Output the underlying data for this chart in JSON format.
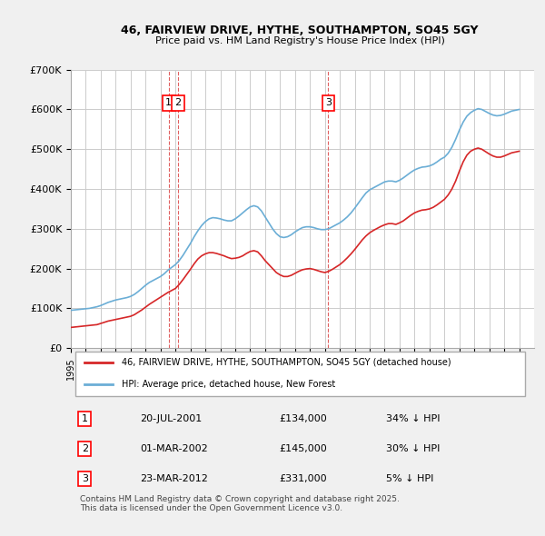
{
  "title": "46, FAIRVIEW DRIVE, HYTHE, SOUTHAMPTON, SO45 5GY",
  "subtitle": "Price paid vs. HM Land Registry's House Price Index (HPI)",
  "ylabel": "",
  "ylim": [
    0,
    700000
  ],
  "yticks": [
    0,
    100000,
    200000,
    300000,
    400000,
    500000,
    600000,
    700000
  ],
  "ytick_labels": [
    "£0",
    "£100K",
    "£200K",
    "£300K",
    "£400K",
    "£500K",
    "£600K",
    "£700K"
  ],
  "xlim_start": 1995.0,
  "xlim_end": 2026.0,
  "bg_color": "#f0f0f0",
  "plot_bg_color": "#ffffff",
  "grid_color": "#cccccc",
  "hpi_color": "#6baed6",
  "price_color": "#d62728",
  "transactions": [
    {
      "num": 1,
      "date": "20-JUL-2001",
      "price": 134000,
      "pct": "34% ↓ HPI",
      "year": 2001.55
    },
    {
      "num": 2,
      "date": "01-MAR-2002",
      "price": 145000,
      "pct": "30% ↓ HPI",
      "year": 2002.17
    },
    {
      "num": 3,
      "date": "23-MAR-2012",
      "price": 331000,
      "pct": "5% ↓ HPI",
      "year": 2012.23
    }
  ],
  "vline_color": "#e06060",
  "legend_label_red": "46, FAIRVIEW DRIVE, HYTHE, SOUTHAMPTON, SO45 5GY (detached house)",
  "legend_label_blue": "HPI: Average price, detached house, New Forest",
  "footnote": "Contains HM Land Registry data © Crown copyright and database right 2025.\nThis data is licensed under the Open Government Licence v3.0.",
  "hpi_years": [
    1995,
    1995.25,
    1995.5,
    1995.75,
    1996,
    1996.25,
    1996.5,
    1996.75,
    1997,
    1997.25,
    1997.5,
    1997.75,
    1998,
    1998.25,
    1998.5,
    1998.75,
    1999,
    1999.25,
    1999.5,
    1999.75,
    2000,
    2000.25,
    2000.5,
    2000.75,
    2001,
    2001.25,
    2001.5,
    2001.75,
    2002,
    2002.25,
    2002.5,
    2002.75,
    2003,
    2003.25,
    2003.5,
    2003.75,
    2004,
    2004.25,
    2004.5,
    2004.75,
    2005,
    2005.25,
    2005.5,
    2005.75,
    2006,
    2006.25,
    2006.5,
    2006.75,
    2007,
    2007.25,
    2007.5,
    2007.75,
    2008,
    2008.25,
    2008.5,
    2008.75,
    2009,
    2009.25,
    2009.5,
    2009.75,
    2010,
    2010.25,
    2010.5,
    2010.75,
    2011,
    2011.25,
    2011.5,
    2011.75,
    2012,
    2012.25,
    2012.5,
    2012.75,
    2013,
    2013.25,
    2013.5,
    2013.75,
    2014,
    2014.25,
    2014.5,
    2014.75,
    2015,
    2015.25,
    2015.5,
    2015.75,
    2016,
    2016.25,
    2016.5,
    2016.75,
    2017,
    2017.25,
    2017.5,
    2017.75,
    2018,
    2018.25,
    2018.5,
    2018.75,
    2019,
    2019.25,
    2019.5,
    2019.75,
    2020,
    2020.25,
    2020.5,
    2020.75,
    2021,
    2021.25,
    2021.5,
    2021.75,
    2022,
    2022.25,
    2022.5,
    2022.75,
    2023,
    2023.25,
    2023.5,
    2023.75,
    2024,
    2024.25,
    2024.5,
    2024.75,
    2025
  ],
  "hpi_values": [
    95000,
    96000,
    97000,
    98000,
    99000,
    100000,
    102000,
    104000,
    107000,
    111000,
    115000,
    118000,
    121000,
    123000,
    125000,
    127000,
    130000,
    135000,
    142000,
    150000,
    158000,
    165000,
    170000,
    175000,
    180000,
    187000,
    196000,
    203000,
    210000,
    220000,
    233000,
    248000,
    263000,
    280000,
    295000,
    308000,
    318000,
    325000,
    328000,
    327000,
    325000,
    322000,
    320000,
    320000,
    325000,
    332000,
    340000,
    348000,
    355000,
    358000,
    355000,
    345000,
    330000,
    315000,
    300000,
    288000,
    280000,
    278000,
    280000,
    285000,
    292000,
    298000,
    303000,
    305000,
    305000,
    303000,
    300000,
    298000,
    298000,
    300000,
    305000,
    310000,
    315000,
    322000,
    330000,
    340000,
    352000,
    365000,
    378000,
    390000,
    398000,
    403000,
    408000,
    413000,
    418000,
    420000,
    420000,
    418000,
    422000,
    428000,
    435000,
    442000,
    448000,
    452000,
    455000,
    456000,
    458000,
    462000,
    468000,
    475000,
    480000,
    490000,
    505000,
    525000,
    548000,
    568000,
    583000,
    592000,
    598000,
    602000,
    600000,
    595000,
    590000,
    586000,
    584000,
    585000,
    588000,
    592000,
    596000,
    598000,
    600000
  ],
  "price_years": [
    1995,
    1995.25,
    1995.5,
    1995.75,
    1996,
    1996.25,
    1996.5,
    1996.75,
    1997,
    1997.25,
    1997.5,
    1997.75,
    1998,
    1998.25,
    1998.5,
    1998.75,
    1999,
    1999.25,
    1999.5,
    1999.75,
    2000,
    2000.25,
    2000.5,
    2000.75,
    2001,
    2001.25,
    2001.5,
    2001.75,
    2002,
    2002.25,
    2002.5,
    2002.75,
    2003,
    2003.25,
    2003.5,
    2003.75,
    2004,
    2004.25,
    2004.5,
    2004.75,
    2005,
    2005.25,
    2005.5,
    2005.75,
    2006,
    2006.25,
    2006.5,
    2006.75,
    2007,
    2007.25,
    2007.5,
    2007.75,
    2008,
    2008.25,
    2008.5,
    2008.75,
    2009,
    2009.25,
    2009.5,
    2009.75,
    2010,
    2010.25,
    2010.5,
    2010.75,
    2011,
    2011.25,
    2011.5,
    2011.75,
    2012,
    2012.25,
    2012.5,
    2012.75,
    2013,
    2013.25,
    2013.5,
    2013.75,
    2014,
    2014.25,
    2014.5,
    2014.75,
    2015,
    2015.25,
    2015.5,
    2015.75,
    2016,
    2016.25,
    2016.5,
    2016.75,
    2017,
    2017.25,
    2017.5,
    2017.75,
    2018,
    2018.25,
    2018.5,
    2018.75,
    2019,
    2019.25,
    2019.5,
    2019.75,
    2020,
    2020.25,
    2020.5,
    2020.75,
    2021,
    2021.25,
    2021.5,
    2021.75,
    2022,
    2022.25,
    2022.5,
    2022.75,
    2023,
    2023.25,
    2023.5,
    2023.75,
    2024,
    2024.25,
    2024.5,
    2024.75,
    2025
  ],
  "price_values": [
    52000,
    53000,
    54000,
    55000,
    56000,
    57000,
    58000,
    59000,
    62000,
    65000,
    68000,
    70000,
    72000,
    74000,
    76000,
    78000,
    80000,
    84000,
    90000,
    96000,
    103000,
    110000,
    116000,
    122000,
    128000,
    134000,
    140000,
    145000,
    150000,
    160000,
    172000,
    185000,
    198000,
    212000,
    224000,
    232000,
    237000,
    240000,
    240000,
    238000,
    235000,
    232000,
    228000,
    225000,
    226000,
    228000,
    232000,
    238000,
    243000,
    245000,
    242000,
    232000,
    220000,
    210000,
    200000,
    190000,
    184000,
    180000,
    180000,
    183000,
    188000,
    193000,
    197000,
    199000,
    200000,
    198000,
    195000,
    192000,
    190000,
    193000,
    198000,
    204000,
    210000,
    218000,
    227000,
    237000,
    248000,
    260000,
    272000,
    282000,
    290000,
    296000,
    301000,
    306000,
    310000,
    313000,
    313000,
    311000,
    315000,
    320000,
    327000,
    334000,
    340000,
    344000,
    347000,
    348000,
    350000,
    354000,
    360000,
    367000,
    374000,
    385000,
    400000,
    420000,
    445000,
    468000,
    485000,
    495000,
    500000,
    503000,
    500000,
    494000,
    488000,
    483000,
    480000,
    480000,
    483000,
    487000,
    491000,
    493000,
    495000
  ]
}
